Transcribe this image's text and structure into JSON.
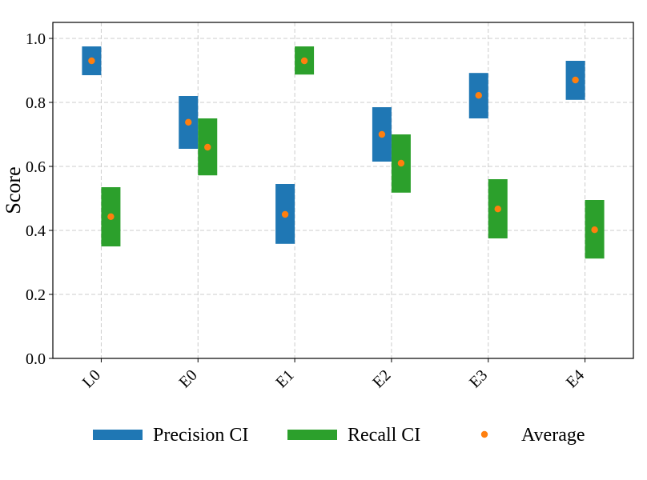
{
  "chart_data": {
    "type": "range-bar",
    "title": "",
    "xlabel": "",
    "ylabel": "Score",
    "categories": [
      "L0",
      "E0",
      "E1",
      "E2",
      "E3",
      "E4"
    ],
    "ylim": [
      0.0,
      1.05
    ],
    "yticks": [
      "0.0",
      "0.2",
      "0.4",
      "0.6",
      "0.8",
      "1.0"
    ],
    "grid": true,
    "legend_position": "bottom",
    "series": [
      {
        "name": "Precision CI",
        "kind": "interval",
        "color": "#1f77b4",
        "low": [
          0.885,
          0.655,
          0.358,
          0.615,
          0.75,
          0.808
        ],
        "high": [
          0.975,
          0.82,
          0.545,
          0.785,
          0.892,
          0.93
        ],
        "average": [
          0.93,
          0.738,
          0.45,
          0.7,
          0.822,
          0.87
        ]
      },
      {
        "name": "Recall CI",
        "kind": "interval",
        "color": "#2ca02c",
        "low": [
          0.35,
          0.572,
          0.887,
          0.518,
          0.375,
          0.312
        ],
        "high": [
          0.535,
          0.75,
          0.975,
          0.7,
          0.56,
          0.495
        ],
        "average": [
          0.443,
          0.66,
          0.93,
          0.61,
          0.467,
          0.402
        ]
      }
    ],
    "average_marker": {
      "name": "Average",
      "color": "#ff7f0e"
    }
  }
}
